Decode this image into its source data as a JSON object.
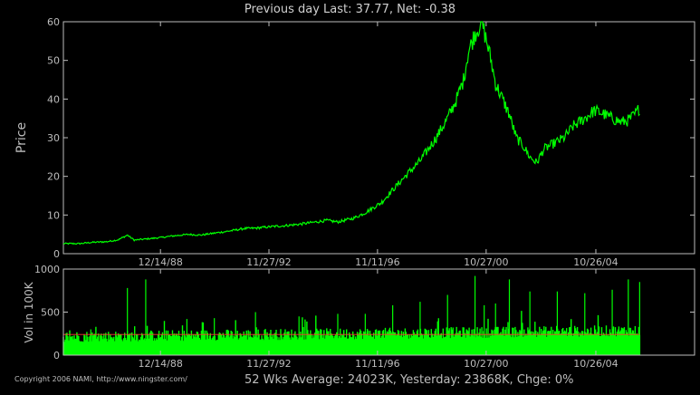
{
  "title": "Previous day Last: 37.77, Net: -0.38",
  "footer": "52 Wks Average: 24023K, Yesterday: 23868K, Chge: 0%",
  "copyright": "Copyright 2006 NAMI, http://www.ningster.com/",
  "colors": {
    "background": "#000000",
    "axes": "#bdbdbd",
    "price_line": "#00ff00",
    "volume_bars": "#00ff00",
    "average_line": "#ff3333"
  },
  "chart_data": [
    {
      "type": "line",
      "ylabel": "Price",
      "ylim": [
        0,
        60
      ],
      "yticks": [
        0,
        10,
        20,
        30,
        40,
        50,
        60
      ],
      "xticks": [
        "12/14/88",
        "11/27/92",
        "11/11/96",
        "10/27/00",
        "10/26/04"
      ],
      "grid": false,
      "x_range": [
        "1985-06-01",
        "2008-06-01"
      ],
      "series": [
        {
          "x": [
            "1985-06-01",
            "1986-01-01",
            "1986-06-01",
            "1987-01-01",
            "1987-06-01",
            "1987-10-01",
            "1988-01-01",
            "1988-06-01",
            "1989-01-01",
            "1989-06-01",
            "1990-01-01",
            "1990-06-01",
            "1991-01-01",
            "1991-06-01",
            "1992-01-01",
            "1992-06-01",
            "1993-01-01",
            "1993-06-01",
            "1994-01-01",
            "1994-06-01",
            "1995-01-01",
            "1995-06-01",
            "1996-01-01",
            "1996-06-01",
            "1997-01-01",
            "1997-06-01",
            "1998-01-01",
            "1998-06-01",
            "1999-01-01",
            "1999-06-01",
            "1999-10-01",
            "2000-01-01",
            "2000-03-01",
            "2000-06-01",
            "2000-09-01",
            "2000-11-01",
            "2001-01-01",
            "2001-03-01",
            "2001-06-01",
            "2001-09-01",
            "2001-12-01",
            "2002-03-01",
            "2002-06-01",
            "2002-09-01",
            "2002-12-01",
            "2003-03-01",
            "2003-06-01",
            "2003-09-01",
            "2004-01-01",
            "2004-06-01",
            "2004-10-01",
            "2005-01-01",
            "2005-06-01",
            "2005-10-01",
            "2006-01-01",
            "2006-04-01",
            "2006-06-01"
          ],
          "y": [
            2.6,
            2.6,
            2.9,
            3.1,
            3.6,
            4.8,
            3.5,
            3.8,
            4.2,
            4.6,
            5.0,
            4.8,
            5.4,
            5.8,
            6.5,
            6.6,
            7.0,
            7.2,
            7.6,
            8.0,
            8.6,
            8.2,
            9.2,
            10.6,
            13.2,
            16.5,
            21.0,
            24.0,
            30.0,
            35.0,
            40.0,
            45.0,
            52.0,
            57.0,
            60.0,
            55.0,
            50.0,
            44.0,
            40.0,
            36.0,
            30.0,
            28.0,
            25.0,
            23.5,
            27.0,
            28.0,
            29.0,
            30.0,
            33.0,
            35.0,
            37.0,
            36.5,
            35.0,
            34.0,
            34.5,
            36.0,
            37.77
          ]
        }
      ]
    },
    {
      "type": "bar",
      "ylabel": "Vol in 100K",
      "ylim": [
        0,
        1000
      ],
      "yticks": [
        0,
        500,
        1000
      ],
      "xticks": [
        "12/14/88",
        "11/27/92",
        "11/11/96",
        "10/27/00",
        "10/26/04"
      ],
      "x_range": [
        "1985-06-01",
        "2008-06-01"
      ],
      "average_level": 240,
      "series": [
        {
          "x": [
            "1986-06-01",
            "1987-10-01",
            "1988-06-01",
            "1989-12-01",
            "1990-12-01",
            "1992-06-01",
            "1994-01-01",
            "1995-06-01",
            "1996-06-01",
            "1997-06-01",
            "1998-06-01",
            "1999-06-01",
            "2000-06-01",
            "2000-10-01",
            "2001-03-01",
            "2001-09-01",
            "2002-06-01",
            "2003-06-01",
            "2004-06-01",
            "2005-06-01",
            "2006-01-01",
            "2006-06-01"
          ],
          "y": [
            300,
            780,
            880,
            420,
            430,
            500,
            450,
            480,
            480,
            580,
            620,
            700,
            920,
            580,
            600,
            880,
            740,
            740,
            720,
            760,
            880,
            850
          ]
        }
      ]
    }
  ]
}
